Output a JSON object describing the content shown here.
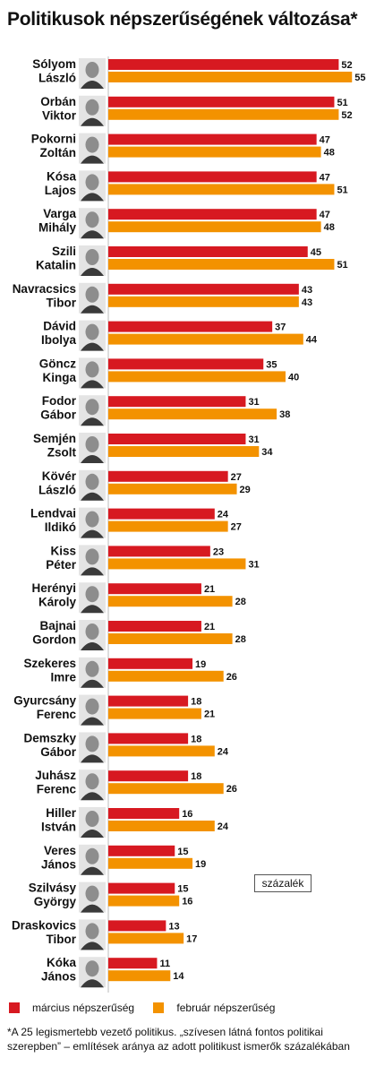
{
  "title": "Politikusok népszerűségének változása*",
  "unit_label": "százalék",
  "legend": [
    {
      "label": "március népszerűség",
      "color": "#d71921"
    },
    {
      "label": "február népszerűség",
      "color": "#f39200"
    }
  ],
  "footnote": "*A 25 legismertebb vezető politikus. „szívesen látná fontos politikai szerepben” – említések aránya az adott politikust ismerők százalékában",
  "photo_icon": "portrait-photo-icon",
  "chart_data": {
    "type": "bar",
    "orientation": "horizontal",
    "categories": [
      [
        "Sólyom",
        "László"
      ],
      [
        "Orbán",
        "Viktor"
      ],
      [
        "Pokorni",
        "Zoltán"
      ],
      [
        "Kósa",
        "Lajos"
      ],
      [
        "Varga",
        "Mihály"
      ],
      [
        "Szili",
        "Katalin"
      ],
      [
        "Navracsics",
        "Tibor"
      ],
      [
        "Dávid",
        "Ibolya"
      ],
      [
        "Göncz",
        "Kinga"
      ],
      [
        "Fodor",
        "Gábor"
      ],
      [
        "Semjén",
        "Zsolt"
      ],
      [
        "Kövér",
        "László"
      ],
      [
        "Lendvai",
        "Ildikó"
      ],
      [
        "Kiss",
        "Péter"
      ],
      [
        "Herényi",
        "Károly"
      ],
      [
        "Bajnai",
        "Gordon"
      ],
      [
        "Szekeres",
        "Imre"
      ],
      [
        "Gyurcsány",
        "Ferenc"
      ],
      [
        "Demszky",
        "Gábor"
      ],
      [
        "Juhász",
        "Ferenc"
      ],
      [
        "Hiller",
        "István"
      ],
      [
        "Veres",
        "János"
      ],
      [
        "Szilvásy",
        "György"
      ],
      [
        "Draskovics",
        "Tibor"
      ],
      [
        "Kóka",
        "János"
      ]
    ],
    "series": [
      {
        "name": "március népszerűség",
        "color": "#d71921",
        "values": [
          52,
          51,
          47,
          47,
          47,
          45,
          43,
          37,
          35,
          31,
          31,
          27,
          24,
          23,
          21,
          21,
          19,
          18,
          18,
          18,
          16,
          15,
          15,
          13,
          11
        ]
      },
      {
        "name": "február népszerűség",
        "color": "#f39200",
        "values": [
          55,
          52,
          48,
          51,
          48,
          51,
          43,
          44,
          40,
          38,
          34,
          29,
          27,
          31,
          28,
          28,
          26,
          21,
          24,
          26,
          24,
          19,
          16,
          17,
          14
        ]
      }
    ],
    "xlim": [
      0,
      55
    ],
    "grid": false,
    "legend_position": "bottom"
  }
}
